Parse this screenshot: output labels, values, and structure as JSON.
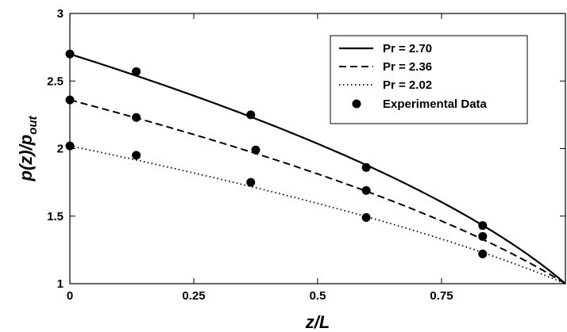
{
  "chart_data": {
    "type": "line",
    "title": "",
    "xlabel": "z/L",
    "ylabel_main": "p(z)/p",
    "ylabel_sub": "out",
    "xlim": [
      0,
      1
    ],
    "ylim": [
      1,
      3
    ],
    "xticks": [
      0,
      0.25,
      0.5,
      0.75
    ],
    "xtick_labels": [
      "0",
      "0.25",
      "0.5",
      "0.75"
    ],
    "yticks": [
      1,
      1.5,
      2,
      2.5,
      3
    ],
    "ytick_labels": [
      "1",
      "1.5",
      "2",
      "2.5",
      "3"
    ],
    "grid": false,
    "legend_position": "top-right",
    "series": [
      {
        "name": "Pr = 2.70",
        "style": "solid",
        "pr": 2.7
      },
      {
        "name": "Pr = 2.36",
        "style": "dashed",
        "pr": 2.36
      },
      {
        "name": "Pr = 2.02",
        "style": "dotted",
        "pr": 2.02
      }
    ],
    "experimental": {
      "name": "Experimental Data",
      "points": [
        {
          "x": 0.0,
          "y": 2.7
        },
        {
          "x": 0.134,
          "y": 2.57
        },
        {
          "x": 0.365,
          "y": 2.25
        },
        {
          "x": 0.598,
          "y": 1.86
        },
        {
          "x": 0.833,
          "y": 1.43
        },
        {
          "x": 0.0,
          "y": 2.36
        },
        {
          "x": 0.134,
          "y": 2.23
        },
        {
          "x": 0.375,
          "y": 1.99
        },
        {
          "x": 0.598,
          "y": 1.69
        },
        {
          "x": 0.833,
          "y": 1.35
        },
        {
          "x": 0.0,
          "y": 2.02
        },
        {
          "x": 0.134,
          "y": 1.95
        },
        {
          "x": 0.365,
          "y": 1.75
        },
        {
          "x": 0.598,
          "y": 1.49
        },
        {
          "x": 0.833,
          "y": 1.22
        }
      ]
    },
    "colors": {
      "line": "#000000",
      "marker": "#000000",
      "background": "#ffffff"
    }
  }
}
